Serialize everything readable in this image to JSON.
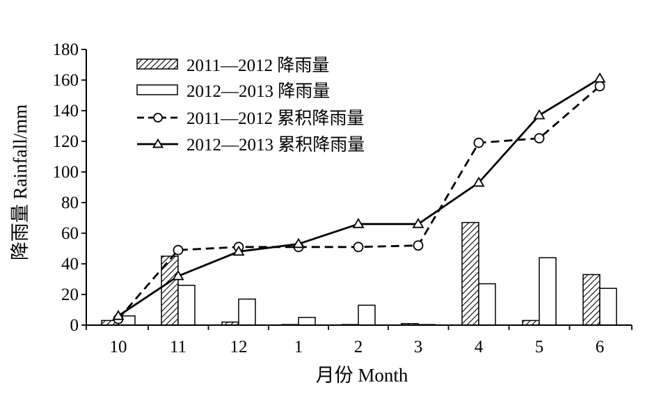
{
  "chart_data": {
    "type": "bar",
    "categories": [
      "10",
      "11",
      "12",
      "1",
      "2",
      "3",
      "4",
      "5",
      "6"
    ],
    "xlabel": "月份 Month",
    "ylabel": "降雨量 Rainfall/mm",
    "ylim": [
      0,
      180
    ],
    "yticks": [
      "0",
      "20",
      "40",
      "60",
      "80",
      "100",
      "120",
      "140",
      "160",
      "180"
    ],
    "grid": false,
    "legend_position": "top-left",
    "bar_series": [
      {
        "name": "2011—2012 降雨量",
        "style": "hatched",
        "values": [
          3,
          45,
          2,
          0,
          0,
          1,
          67,
          3,
          33
        ]
      },
      {
        "name": "2012—2013 降雨量",
        "style": "open",
        "values": [
          6,
          26,
          17,
          5,
          13,
          0,
          27,
          44,
          24
        ]
      }
    ],
    "line_series": [
      {
        "name": "2011—2012 累积降雨量",
        "style": "dashed",
        "marker": "circle",
        "values": [
          4,
          49,
          51,
          51,
          51,
          52,
          119,
          122,
          156
        ]
      },
      {
        "name": "2012—2013 累积降雨量",
        "style": "solid",
        "marker": "triangle",
        "values": [
          6,
          32,
          48,
          53,
          66,
          66,
          93,
          137,
          161
        ]
      }
    ]
  }
}
